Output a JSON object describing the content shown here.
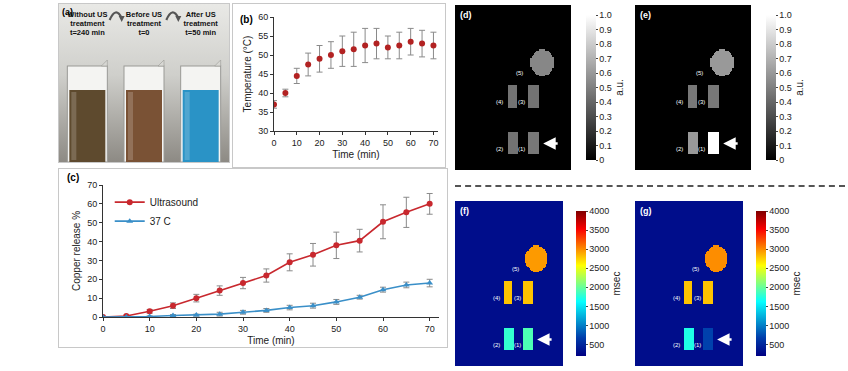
{
  "chart_data": [
    {
      "type": "photo",
      "title": "(a)",
      "vials": [
        {
          "text": [
            "Without US",
            "treatment",
            "t=240 min"
          ],
          "color": "#5e4a2e"
        },
        {
          "text": [
            "Before US",
            "treatment",
            "t=0"
          ],
          "color": "#7a5235"
        },
        {
          "text": [
            "After US",
            "treatment",
            "t=50 min"
          ],
          "color": "#2a93c6"
        }
      ]
    },
    {
      "type": "line",
      "title": "(b)",
      "x_label": "Time (min)",
      "y_label": "Temperature (°C)",
      "x": [
        0,
        5,
        10,
        15,
        20,
        25,
        30,
        35,
        40,
        45,
        50,
        55,
        60,
        65,
        70
      ],
      "series": [
        {
          "values": [
            37,
            40,
            44.5,
            47.5,
            49,
            50,
            51,
            51.5,
            52.5,
            53,
            52,
            52.5,
            53.5,
            53,
            52.5
          ],
          "errors": [
            1,
            1,
            2,
            3,
            3.5,
            3.5,
            4,
            4.5,
            4.5,
            4,
            3,
            3.5,
            3.5,
            3.5,
            3.5
          ],
          "color": "#b22222",
          "marker": "circle",
          "line_style": "none"
        }
      ],
      "xlim": [
        0,
        72
      ],
      "xticks": [
        0,
        10,
        20,
        30,
        40,
        50,
        60,
        70
      ],
      "ylim": [
        30,
        60
      ],
      "yticks": [
        30,
        35,
        40,
        45,
        50,
        55,
        60
      ],
      "grid": false
    },
    {
      "type": "line",
      "title": "(c)",
      "x_label": "Time (min)",
      "y_label": "Copper release %",
      "x": [
        0,
        5,
        10,
        15,
        20,
        25,
        30,
        35,
        40,
        45,
        50,
        55,
        60,
        65,
        70
      ],
      "series": [
        {
          "name": "Ultrasound",
          "values": [
            0,
            0.5,
            3,
            6,
            10,
            14,
            18,
            22,
            29,
            33,
            38,
            40.5,
            50.5,
            55.5,
            60
          ],
          "errors": [
            0,
            0.5,
            1,
            1.5,
            2,
            2.5,
            3,
            3.5,
            4.5,
            6,
            7,
            6,
            9,
            8,
            5.5
          ],
          "color": "#c8282e",
          "marker": "circle",
          "line_style": "solid"
        },
        {
          "name": "37 C",
          "values": [
            0,
            0,
            0.3,
            0.8,
            1,
            1.5,
            2.5,
            3.5,
            5,
            6,
            8,
            10.5,
            14.5,
            17,
            18
          ],
          "errors": [
            0,
            0,
            0.3,
            0.5,
            0.5,
            1,
            1,
            1,
            1.2,
            1.3,
            1.3,
            1,
            1.3,
            1.5,
            2
          ],
          "color": "#3a8fc8",
          "marker": "triangle",
          "line_style": "solid"
        }
      ],
      "xlim": [
        0,
        72
      ],
      "xticks": [
        0,
        10,
        20,
        30,
        40,
        50,
        60,
        70
      ],
      "ylim": [
        0,
        70
      ],
      "yticks": [
        0,
        10,
        20,
        30,
        40,
        50,
        60,
        70
      ],
      "legend": "upper left",
      "grid": false
    },
    {
      "type": "heatmap",
      "title": "(d)",
      "color": "gray",
      "tick_labels": false,
      "background": 0,
      "objects": [
        {
          "label": "(1)",
          "value": 0.47
        },
        {
          "label": "(2)",
          "value": 0.45
        },
        {
          "label": "(3)",
          "value": 0.45
        },
        {
          "label": "(4)",
          "value": 0.45
        },
        {
          "label": "(5)",
          "value": 0.53
        }
      ],
      "colorbar": {
        "lim": [
          0,
          1
        ],
        "ticks": [
          0,
          0.1,
          0.2,
          0.3,
          0.4,
          0.5,
          0.6,
          0.7,
          0.8,
          0.9,
          {
            "value": 1,
            "label": "1.0"
          }
        ],
        "label": "a.u."
      }
    },
    {
      "type": "heatmap",
      "title": "(e)",
      "color": "gray",
      "tick_labels": false,
      "background": 0,
      "objects": [
        {
          "label": "(1)",
          "value": 1
        },
        {
          "label": "(2)",
          "value": 0.6
        },
        {
          "label": "(3)",
          "value": 0.47
        },
        {
          "label": "(4)",
          "value": 0.47
        },
        {
          "label": "(5)",
          "value": 0.6
        }
      ],
      "colorbar": {
        "lim": [
          0,
          1
        ],
        "ticks": [
          0,
          0.1,
          0.2,
          0.3,
          0.4,
          0.5,
          0.6,
          0.7,
          0.8,
          0.9,
          {
            "value": 1,
            "label": "1.0"
          }
        ],
        "label": "a.u."
      }
    },
    {
      "type": "heatmap",
      "title": "(f)",
      "color": "jet",
      "tick_labels": false,
      "background": 300,
      "objects": [
        {
          "label": "(1)",
          "value": 1900
        },
        {
          "label": "(2)",
          "value": 1800
        },
        {
          "label": "(3)",
          "value": 2800
        },
        {
          "label": "(4)",
          "value": 2800
        },
        {
          "label": "(5)",
          "value": 2950
        }
      ],
      "colorbar": {
        "lim": [
          200,
          4000
        ],
        "ticks": [
          500,
          1000,
          1500,
          2000,
          2500,
          3000,
          3500,
          4000
        ],
        "label": "msec"
      }
    },
    {
      "type": "heatmap",
      "title": "(g)",
      "color": "jet",
      "tick_labels": false,
      "background": 300,
      "objects": [
        {
          "label": "(1)",
          "value": 700
        },
        {
          "label": "(2)",
          "value": 1720
        },
        {
          "label": "(3)",
          "value": 2800
        },
        {
          "label": "(4)",
          "value": 2800
        },
        {
          "label": "(5)",
          "value": 3000
        }
      ],
      "colorbar": {
        "lim": [
          200,
          4000
        ],
        "ticks": [
          500,
          1000,
          1500,
          2000,
          2500,
          3000,
          3500,
          4000
        ],
        "label": "msec"
      }
    }
  ]
}
